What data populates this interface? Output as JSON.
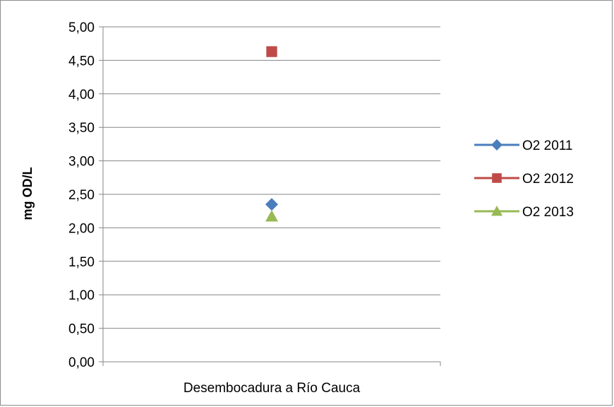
{
  "chart_data": {
    "type": "scatter",
    "categories": [
      "Desembocadura a Río Cauca"
    ],
    "ylabel": "mg OD/L",
    "xlabel": "",
    "ylim": [
      0,
      5
    ],
    "ytick_labels": [
      "0,00",
      "0,50",
      "1,00",
      "1,50",
      "2,00",
      "2,50",
      "3,00",
      "3,50",
      "4,00",
      "4,50",
      "5,00"
    ],
    "grid": true,
    "legend_position": "right",
    "series": [
      {
        "name": "O2 2011",
        "values": [
          2.35
        ],
        "color": "#4a7ebb",
        "marker": "diamond"
      },
      {
        "name": "O2 2012",
        "values": [
          4.63
        ],
        "color": "#be4b48",
        "marker": "square"
      },
      {
        "name": "O2 2013",
        "values": [
          2.17
        ],
        "color": "#98b954",
        "marker": "triangle"
      }
    ]
  }
}
